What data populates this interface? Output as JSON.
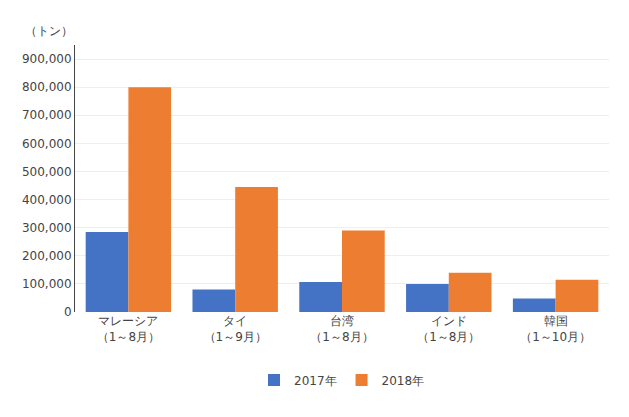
{
  "chart_data": {
    "type": "bar",
    "ylabel": "（トン）",
    "categories": [
      "マレーシア\n（1～8月）",
      "タイ\n（1～9月）",
      "台湾\n（1～8月）",
      "インド\n（1～8月）",
      "韓国\n（1～10月）"
    ],
    "series": [
      {
        "name": "2017年",
        "color": "#4472C4",
        "values": [
          285000,
          80000,
          107000,
          100000,
          48000
        ]
      },
      {
        "name": "2018年",
        "color": "#ED7D31",
        "values": [
          800000,
          445000,
          290000,
          140000,
          115000
        ]
      }
    ],
    "ylim": [
      0,
      950000
    ],
    "yticks": [
      0,
      {
        "value": 100000,
        "label": "100,000"
      },
      {
        "value": 200000,
        "label": "200,000"
      },
      {
        "value": 300000,
        "label": "300,000"
      },
      {
        "value": 400000,
        "label": "400,000"
      },
      {
        "value": 500000,
        "label": "500,000"
      },
      {
        "value": 600000,
        "label": "600,000"
      },
      {
        "value": 700000,
        "label": "700,000"
      },
      {
        "value": 800000,
        "label": "800,000"
      },
      {
        "value": 900000,
        "label": "900,000"
      }
    ],
    "grid": true,
    "legend": "bottom"
  }
}
